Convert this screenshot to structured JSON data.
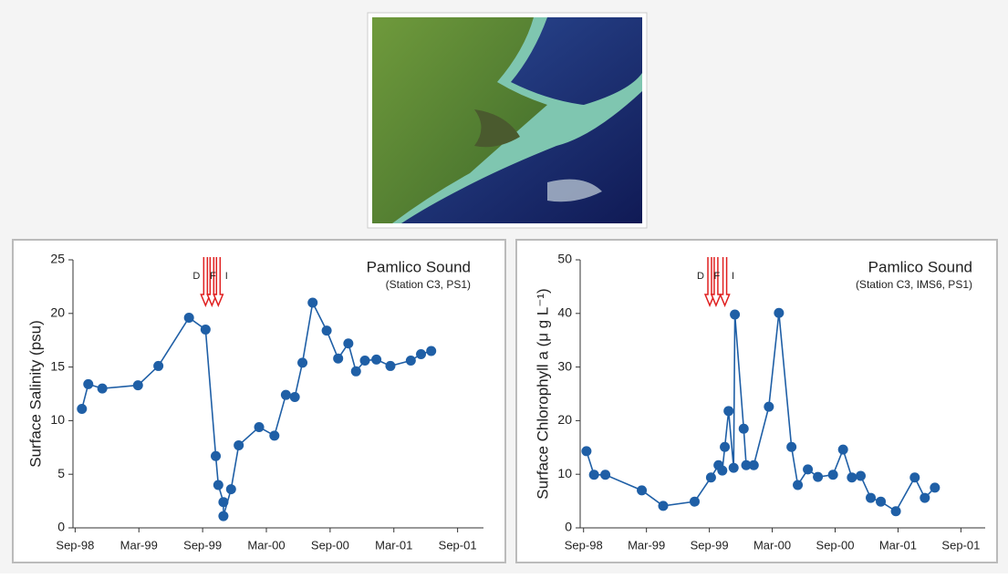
{
  "chart_data": [
    {
      "type": "line",
      "title": "Pamlico Sound",
      "subtitle": "(Station C3, PS1)",
      "y_label": "Surface Salinity (psu)",
      "color": "#1f5fa6",
      "x": [
        1998.72,
        1998.77,
        1998.88,
        1999.16,
        1999.32,
        1999.56,
        1999.69,
        1999.77,
        1999.79,
        1999.83,
        1999.83,
        1999.89,
        1999.95,
        2000.11,
        2000.23,
        2000.32,
        2000.39,
        2000.45,
        2000.53,
        2000.64,
        2000.73,
        2000.81,
        2000.87,
        2000.94,
        2001.03,
        2001.14,
        2001.3,
        2001.38,
        2001.46
      ],
      "values": [
        11.1,
        13.4,
        13.0,
        13.3,
        15.1,
        19.6,
        18.5,
        6.7,
        4.0,
        2.4,
        1.1,
        3.6,
        7.7,
        9.4,
        8.6,
        12.4,
        12.2,
        15.4,
        21.0,
        18.4,
        15.8,
        17.2,
        14.6,
        15.6,
        15.7,
        15.1,
        15.6,
        16.2,
        16.5
      ],
      "xlim": [
        1998.65,
        2001.87
      ],
      "ylim": [
        0,
        25
      ],
      "xticks": [
        {
          "value": 1998.667,
          "label": "Sep-98"
        },
        {
          "value": 1999.167,
          "label": "Mar-99"
        },
        {
          "value": 1999.667,
          "label": "Sep-99"
        },
        {
          "value": 2000.167,
          "label": "Mar-00"
        },
        {
          "value": 2000.667,
          "label": "Sep-00"
        },
        {
          "value": 2001.167,
          "label": "Mar-01"
        },
        {
          "value": 2001.667,
          "label": "Sep-01"
        }
      ],
      "yticks": [
        0,
        5,
        10,
        15,
        20,
        25
      ],
      "events": [
        {
          "label": "D",
          "x": 1999.69,
          "color": "#e02020"
        },
        {
          "label": "F",
          "x": 1999.74,
          "color": "#e02020"
        },
        {
          "label": "I",
          "x": 1999.79,
          "color": "#e02020"
        }
      ]
    },
    {
      "type": "line",
      "title": "Pamlico Sound",
      "subtitle": "(Station C3, IMS6, PS1)",
      "y_label": "Surface Chlorophyll a (μ g L⁻¹)",
      "color": "#1f5fa6",
      "x": [
        1998.69,
        1998.75,
        1998.84,
        1999.13,
        1999.3,
        1999.55,
        1999.68,
        1999.74,
        1999.77,
        1999.79,
        1999.82,
        1999.86,
        1999.87,
        1999.94,
        1999.96,
        2000.02,
        2000.14,
        2000.22,
        2000.32,
        2000.37,
        2000.45,
        2000.53,
        2000.65,
        2000.73,
        2000.8,
        2000.87,
        2000.95,
        2001.03,
        2001.15,
        2001.3,
        2001.38,
        2001.46
      ],
      "values": [
        14.3,
        9.9,
        9.9,
        7.0,
        4.1,
        4.9,
        9.4,
        11.7,
        10.7,
        15.1,
        21.8,
        11.2,
        39.8,
        18.5,
        11.7,
        11.7,
        22.6,
        40.1,
        15.1,
        8.0,
        10.9,
        9.5,
        9.9,
        14.6,
        9.4,
        9.7,
        5.6,
        4.9,
        3.1,
        9.4,
        5.6,
        7.5
      ],
      "xlim": [
        1998.64,
        2001.86
      ],
      "ylim": [
        0,
        50
      ],
      "xticks": [
        {
          "value": 1998.667,
          "label": "Sep-98"
        },
        {
          "value": 1999.167,
          "label": "Mar-99"
        },
        {
          "value": 1999.667,
          "label": "Sep-99"
        },
        {
          "value": 2000.167,
          "label": "Mar-00"
        },
        {
          "value": 2000.667,
          "label": "Sep-00"
        },
        {
          "value": 2001.167,
          "label": "Mar-01"
        },
        {
          "value": 2001.667,
          "label": "Sep-01"
        }
      ],
      "yticks": [
        0,
        10,
        20,
        30,
        40,
        50
      ],
      "events": [
        {
          "label": "D",
          "x": 1999.67,
          "color": "#e02020"
        },
        {
          "label": "F",
          "x": 1999.72,
          "color": "#e02020"
        },
        {
          "label": "I",
          "x": 1999.79,
          "color": "#e02020"
        }
      ]
    }
  ]
}
